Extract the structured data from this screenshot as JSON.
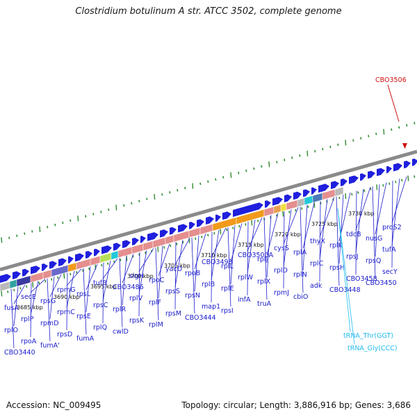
{
  "title": "Clostridium botulinum A str. ATCC 3502, complete genome",
  "footer": {
    "accession": "Accession: NC_009495",
    "summary": "Topology: circular; Length: 3,886,916 bp; Genes: 3,686"
  },
  "colors": {
    "backbone": "#8a8a8a",
    "tick": "#2e8b2e",
    "gene_forward": "#1f1fdd",
    "gene_default": "#e58f8f",
    "highlight_red": "#cc1111",
    "trna": "#22bbee",
    "label": "#1a1acc"
  },
  "kbp_ticks": [
    "3685 kbp",
    "3690 kbp",
    "3695 kbp",
    "3700 kbp",
    "3705 kbp",
    "3710 kbp",
    "3715 kbp",
    "3720 kbp",
    "3725 kbp",
    "3730 kbp"
  ],
  "highlight_gene": "CBO3506",
  "gene_labels": [
    "CBO3440",
    "fumA'",
    "fumA",
    "cwlD",
    "rplM",
    "CBO3444",
    "rpsI",
    "truA",
    "cbiO",
    "CBO3448",
    "CBO3450",
    "rpoA",
    "rpsD",
    "rplQ",
    "rpsK",
    "rpsM",
    "map1",
    "infA",
    "rpmJ",
    "adk",
    "CBO3458",
    "secY",
    "rplO",
    "rpmD",
    "rpsE",
    "rplR",
    "rplF",
    "rpsN",
    "rplE",
    "rplX",
    "rplN",
    "rpsH",
    "rpsQ",
    "rplP",
    "rpmC",
    "rpsC",
    "rplV",
    "rpsS",
    "rplB",
    "rplW",
    "rplD",
    "rplC",
    "rpsJ",
    "tufA",
    "fusA",
    "rpsG",
    "rpsL",
    "CBO3486",
    "rpoC",
    "rpoB",
    "rplL",
    "rplJ",
    "rplA",
    "rplK",
    "nusG",
    "secE",
    "rpmG",
    "tufB",
    "sigH",
    "yacO",
    "CBO3498",
    "CBO3500A",
    "cysS",
    "thyX",
    "tdcB",
    "proS2"
  ],
  "trna_labels": [
    "tRNA_Thr(GGT)",
    "tRNA_Gly(CCC)"
  ]
}
